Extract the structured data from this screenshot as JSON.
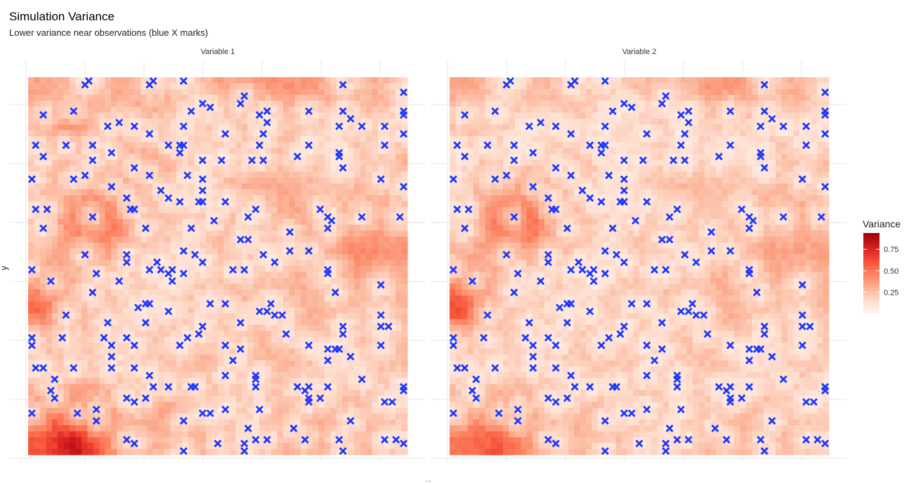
{
  "chart_data": {
    "type": "heatmap",
    "title": "Simulation Variance",
    "subtitle": "Lower variance near observations (blue X marks)",
    "xlabel": "x",
    "ylabel": "y",
    "xlim": [
      0,
      100
    ],
    "ylim": [
      0,
      100
    ],
    "grid": true,
    "legend": {
      "title": "Variance",
      "position": "right",
      "ticks": [
        0.25,
        0.5,
        0.75
      ],
      "tick_labels": [
        "0.25",
        "0.50",
        "0.75"
      ],
      "limits": [
        0.0,
        0.94
      ],
      "palette": [
        "#fff5f0",
        "#fee0d2",
        "#fcbba1",
        "#fc9272",
        "#fb6a4a",
        "#ef3b2c",
        "#cb181d",
        "#99000d"
      ]
    },
    "marker_color": "#1a36ff",
    "grid_resolution_note": "coarse 12x12 variance grid per panel, rows top to bottom",
    "panels": [
      {
        "label": "Variable 1",
        "variance_grid": [
          [
            0.35,
            0.3,
            0.3,
            0.35,
            0.3,
            0.3,
            0.4,
            0.4,
            0.4,
            0.35,
            0.3,
            0.3
          ],
          [
            0.35,
            0.5,
            0.3,
            0.3,
            0.25,
            0.25,
            0.3,
            0.25,
            0.25,
            0.25,
            0.3,
            0.3
          ],
          [
            0.3,
            0.3,
            0.3,
            0.35,
            0.4,
            0.25,
            0.25,
            0.3,
            0.3,
            0.2,
            0.25,
            0.3
          ],
          [
            0.3,
            0.35,
            0.4,
            0.35,
            0.3,
            0.25,
            0.3,
            0.35,
            0.3,
            0.25,
            0.3,
            0.3
          ],
          [
            0.3,
            0.5,
            0.6,
            0.35,
            0.25,
            0.3,
            0.3,
            0.25,
            0.4,
            0.3,
            0.35,
            0.35
          ],
          [
            0.3,
            0.4,
            0.4,
            0.3,
            0.25,
            0.25,
            0.3,
            0.25,
            0.3,
            0.35,
            0.45,
            0.4
          ],
          [
            0.5,
            0.3,
            0.3,
            0.25,
            0.2,
            0.25,
            0.3,
            0.3,
            0.3,
            0.3,
            0.35,
            0.3
          ],
          [
            0.55,
            0.3,
            0.25,
            0.25,
            0.25,
            0.25,
            0.3,
            0.25,
            0.3,
            0.3,
            0.25,
            0.3
          ],
          [
            0.3,
            0.25,
            0.3,
            0.3,
            0.25,
            0.3,
            0.35,
            0.3,
            0.3,
            0.25,
            0.3,
            0.3
          ],
          [
            0.3,
            0.3,
            0.25,
            0.3,
            0.25,
            0.3,
            0.25,
            0.25,
            0.3,
            0.25,
            0.25,
            0.25
          ],
          [
            0.45,
            0.55,
            0.4,
            0.3,
            0.4,
            0.3,
            0.25,
            0.3,
            0.3,
            0.3,
            0.3,
            0.25
          ],
          [
            0.6,
            0.85,
            0.5,
            0.35,
            0.3,
            0.35,
            0.3,
            0.3,
            0.35,
            0.35,
            0.3,
            0.3
          ]
        ]
      },
      {
        "label": "Variable 2",
        "variance_grid": [
          [
            0.35,
            0.25,
            0.25,
            0.3,
            0.25,
            0.25,
            0.3,
            0.3,
            0.4,
            0.4,
            0.3,
            0.3
          ],
          [
            0.3,
            0.25,
            0.2,
            0.25,
            0.2,
            0.2,
            0.25,
            0.2,
            0.25,
            0.25,
            0.25,
            0.25
          ],
          [
            0.25,
            0.25,
            0.25,
            0.25,
            0.3,
            0.2,
            0.25,
            0.25,
            0.2,
            0.2,
            0.25,
            0.25
          ],
          [
            0.25,
            0.4,
            0.45,
            0.3,
            0.25,
            0.25,
            0.25,
            0.3,
            0.25,
            0.25,
            0.3,
            0.3
          ],
          [
            0.3,
            0.55,
            0.65,
            0.35,
            0.25,
            0.25,
            0.3,
            0.25,
            0.3,
            0.3,
            0.3,
            0.35
          ],
          [
            0.3,
            0.4,
            0.4,
            0.3,
            0.25,
            0.25,
            0.3,
            0.25,
            0.3,
            0.35,
            0.35,
            0.35
          ],
          [
            0.55,
            0.3,
            0.25,
            0.25,
            0.2,
            0.25,
            0.25,
            0.25,
            0.3,
            0.3,
            0.3,
            0.3
          ],
          [
            0.65,
            0.3,
            0.25,
            0.25,
            0.25,
            0.25,
            0.3,
            0.25,
            0.3,
            0.3,
            0.25,
            0.3
          ],
          [
            0.3,
            0.25,
            0.25,
            0.25,
            0.25,
            0.25,
            0.25,
            0.25,
            0.3,
            0.25,
            0.25,
            0.25
          ],
          [
            0.25,
            0.25,
            0.25,
            0.3,
            0.25,
            0.25,
            0.25,
            0.25,
            0.25,
            0.25,
            0.25,
            0.25
          ],
          [
            0.35,
            0.45,
            0.35,
            0.25,
            0.3,
            0.25,
            0.25,
            0.25,
            0.25,
            0.3,
            0.25,
            0.25
          ],
          [
            0.5,
            0.6,
            0.45,
            0.3,
            0.3,
            0.3,
            0.25,
            0.3,
            0.35,
            0.35,
            0.3,
            0.3
          ]
        ]
      }
    ],
    "observations": [
      [
        16,
        99
      ],
      [
        15,
        98
      ],
      [
        33,
        99
      ],
      [
        32,
        98
      ],
      [
        41,
        99
      ],
      [
        57,
        95
      ],
      [
        56,
        93
      ],
      [
        46,
        93
      ],
      [
        48,
        92
      ],
      [
        43,
        91
      ],
      [
        63,
        91
      ],
      [
        61,
        90
      ],
      [
        63,
        88
      ],
      [
        62,
        85
      ],
      [
        74,
        91
      ],
      [
        83,
        98
      ],
      [
        83,
        91
      ],
      [
        99,
        96
      ],
      [
        99,
        91
      ],
      [
        99,
        90
      ],
      [
        4,
        90
      ],
      [
        12,
        91
      ],
      [
        21,
        87
      ],
      [
        24,
        88
      ],
      [
        28,
        87
      ],
      [
        32,
        85
      ],
      [
        41,
        87
      ],
      [
        52,
        85
      ],
      [
        82,
        87
      ],
      [
        85,
        89
      ],
      [
        88,
        87
      ],
      [
        94,
        87
      ],
      [
        99,
        85
      ],
      [
        2,
        82
      ],
      [
        4,
        79
      ],
      [
        10,
        82
      ],
      [
        17,
        82
      ],
      [
        22,
        80
      ],
      [
        37,
        82
      ],
      [
        40,
        82
      ],
      [
        41,
        82
      ],
      [
        40,
        80
      ],
      [
        46,
        78
      ],
      [
        61,
        82
      ],
      [
        74,
        82
      ],
      [
        82,
        80
      ],
      [
        82,
        79
      ],
      [
        94,
        82
      ],
      [
        17,
        78
      ],
      [
        15,
        74
      ],
      [
        12,
        73
      ],
      [
        28,
        76
      ],
      [
        32,
        74
      ],
      [
        42,
        74
      ],
      [
        46,
        73
      ],
      [
        51,
        78
      ],
      [
        59,
        78
      ],
      [
        62,
        78
      ],
      [
        71,
        79
      ],
      [
        83,
        76
      ],
      [
        93,
        73
      ],
      [
        99,
        71
      ],
      [
        1,
        73
      ],
      [
        46,
        70
      ],
      [
        35,
        70
      ],
      [
        37,
        68
      ],
      [
        26,
        68
      ],
      [
        28,
        65
      ],
      [
        27,
        65
      ],
      [
        22,
        71
      ],
      [
        2,
        65
      ],
      [
        5,
        65
      ],
      [
        4,
        60
      ],
      [
        17,
        63
      ],
      [
        40,
        67
      ],
      [
        45,
        67
      ],
      [
        46,
        67
      ],
      [
        52,
        67
      ],
      [
        60,
        65
      ],
      [
        58,
        63
      ],
      [
        77,
        65
      ],
      [
        79,
        63
      ],
      [
        79,
        60
      ],
      [
        80,
        62
      ],
      [
        88,
        63
      ],
      [
        98,
        63
      ],
      [
        31,
        60
      ],
      [
        43,
        60
      ],
      [
        49,
        62
      ],
      [
        56,
        57
      ],
      [
        58,
        57
      ],
      [
        69,
        59
      ],
      [
        74,
        54
      ],
      [
        69,
        54
      ],
      [
        41,
        54
      ],
      [
        46,
        51
      ],
      [
        44,
        53
      ],
      [
        34,
        51
      ],
      [
        35,
        49
      ],
      [
        38,
        49
      ],
      [
        37,
        48
      ],
      [
        38,
        46
      ],
      [
        41,
        48
      ],
      [
        26,
        53
      ],
      [
        26,
        51
      ],
      [
        15,
        53
      ],
      [
        18,
        48
      ],
      [
        24,
        46
      ],
      [
        17,
        43
      ],
      [
        32,
        49
      ],
      [
        1,
        49
      ],
      [
        6,
        46
      ],
      [
        54,
        49
      ],
      [
        57,
        49
      ],
      [
        62,
        53
      ],
      [
        65,
        51
      ],
      [
        79,
        49
      ],
      [
        79,
        48
      ],
      [
        81,
        43
      ],
      [
        93,
        45
      ],
      [
        31,
        40
      ],
      [
        32,
        40
      ],
      [
        29,
        39
      ],
      [
        37,
        38
      ],
      [
        48,
        40
      ],
      [
        52,
        40
      ],
      [
        61,
        38
      ],
      [
        63,
        38
      ],
      [
        64,
        40
      ],
      [
        65,
        37
      ],
      [
        67,
        37
      ],
      [
        10,
        37
      ],
      [
        21,
        35
      ],
      [
        31,
        35
      ],
      [
        46,
        34
      ],
      [
        45,
        32
      ],
      [
        56,
        35
      ],
      [
        68,
        32
      ],
      [
        83,
        34
      ],
      [
        83,
        32
      ],
      [
        93,
        37
      ],
      [
        93,
        34
      ],
      [
        95,
        34
      ],
      [
        1,
        31
      ],
      [
        1,
        29
      ],
      [
        9,
        31
      ],
      [
        20,
        31
      ],
      [
        22,
        29
      ],
      [
        26,
        31
      ],
      [
        28,
        29
      ],
      [
        40,
        29
      ],
      [
        42,
        31
      ],
      [
        52,
        29
      ],
      [
        74,
        29
      ],
      [
        79,
        28
      ],
      [
        81,
        28
      ],
      [
        82,
        28
      ],
      [
        79,
        25
      ],
      [
        85,
        26
      ],
      [
        93,
        29
      ],
      [
        2,
        23
      ],
      [
        4,
        23
      ],
      [
        7,
        20
      ],
      [
        12,
        23
      ],
      [
        22,
        26
      ],
      [
        22,
        23
      ],
      [
        28,
        23
      ],
      [
        32,
        21
      ],
      [
        37,
        18
      ],
      [
        33,
        18
      ],
      [
        43,
        18
      ],
      [
        44,
        18
      ],
      [
        52,
        21
      ],
      [
        60,
        21
      ],
      [
        60,
        20
      ],
      [
        60,
        18
      ],
      [
        54,
        25
      ],
      [
        56,
        28
      ],
      [
        71,
        18
      ],
      [
        74,
        18
      ],
      [
        73,
        17
      ],
      [
        74,
        15
      ],
      [
        74,
        14
      ],
      [
        77,
        15
      ],
      [
        79,
        18
      ],
      [
        88,
        20
      ],
      [
        99,
        18
      ],
      [
        99,
        17
      ],
      [
        94,
        14
      ],
      [
        96,
        14
      ],
      [
        6,
        17
      ],
      [
        7,
        15
      ],
      [
        26,
        15
      ],
      [
        28,
        14
      ],
      [
        31,
        15
      ],
      [
        18,
        12
      ],
      [
        18,
        9
      ],
      [
        13,
        11
      ],
      [
        1,
        11
      ],
      [
        41,
        9
      ],
      [
        46,
        11
      ],
      [
        48,
        11
      ],
      [
        52,
        12
      ],
      [
        61,
        12
      ],
      [
        58,
        7
      ],
      [
        70,
        7
      ],
      [
        73,
        4
      ],
      [
        85,
        9
      ],
      [
        82,
        4
      ],
      [
        83,
        1
      ],
      [
        94,
        4
      ],
      [
        97,
        4
      ],
      [
        99,
        3
      ],
      [
        57,
        3
      ],
      [
        57,
        1
      ],
      [
        50,
        3
      ],
      [
        41,
        1
      ],
      [
        26,
        4
      ],
      [
        28,
        3
      ],
      [
        60,
        4
      ],
      [
        63,
        4
      ]
    ]
  }
}
